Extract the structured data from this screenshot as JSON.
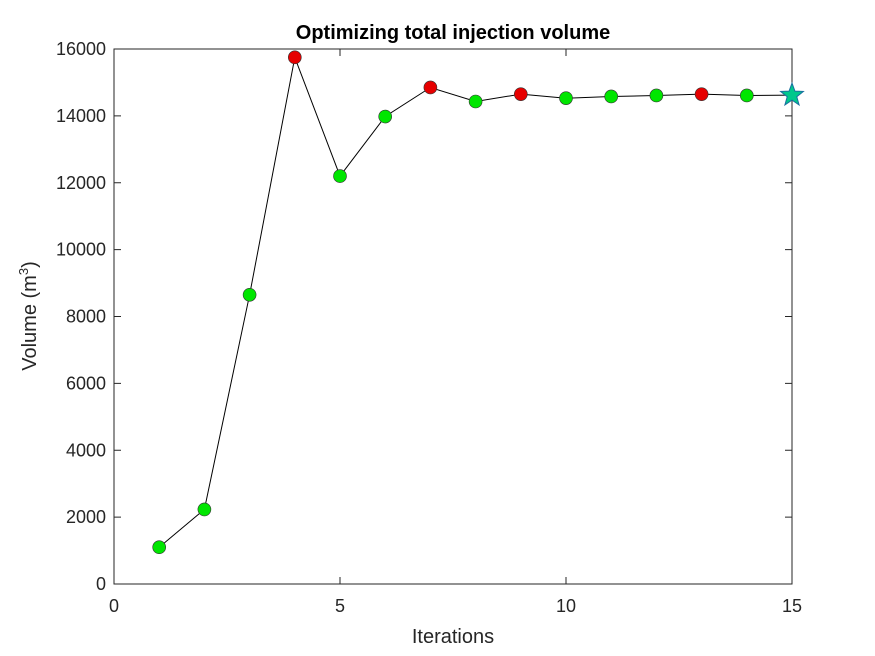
{
  "chart_data": {
    "type": "scatter",
    "title": "Optimizing total injection volume",
    "xlabel": "Iterations",
    "ylabel": "Volume (m",
    "ylabel_superscript": "3",
    "ylabel_suffix": ")",
    "xlim": [
      0,
      15
    ],
    "ylim": [
      0,
      16000
    ],
    "xticks": [
      0,
      5,
      10,
      15
    ],
    "yticks": [
      0,
      2000,
      4000,
      6000,
      8000,
      10000,
      12000,
      14000,
      16000
    ],
    "grid": false,
    "legend": "none",
    "colors": {
      "accepted": "#00e600",
      "rejected": "#e60000",
      "line": "#000000",
      "final_marker": "#00c88c"
    },
    "series": [
      {
        "values": [
          {
            "x": 1,
            "y": 1100,
            "status": "accepted"
          },
          {
            "x": 2,
            "y": 2230,
            "status": "accepted"
          },
          {
            "x": 3,
            "y": 8650,
            "status": "accepted"
          },
          {
            "x": 4,
            "y": 15750,
            "status": "rejected"
          },
          {
            "x": 5,
            "y": 12200,
            "status": "accepted"
          },
          {
            "x": 6,
            "y": 13980,
            "status": "accepted"
          },
          {
            "x": 7,
            "y": 14850,
            "status": "rejected"
          },
          {
            "x": 8,
            "y": 14430,
            "status": "accepted"
          },
          {
            "x": 9,
            "y": 14650,
            "status": "rejected"
          },
          {
            "x": 10,
            "y": 14530,
            "status": "accepted"
          },
          {
            "x": 11,
            "y": 14580,
            "status": "accepted"
          },
          {
            "x": 12,
            "y": 14610,
            "status": "accepted"
          },
          {
            "x": 13,
            "y": 14650,
            "status": "rejected"
          },
          {
            "x": 14,
            "y": 14610,
            "status": "accepted"
          },
          {
            "x": 15,
            "y": 14620,
            "status": "final"
          }
        ]
      }
    ],
    "final_marker_shape": "star"
  }
}
